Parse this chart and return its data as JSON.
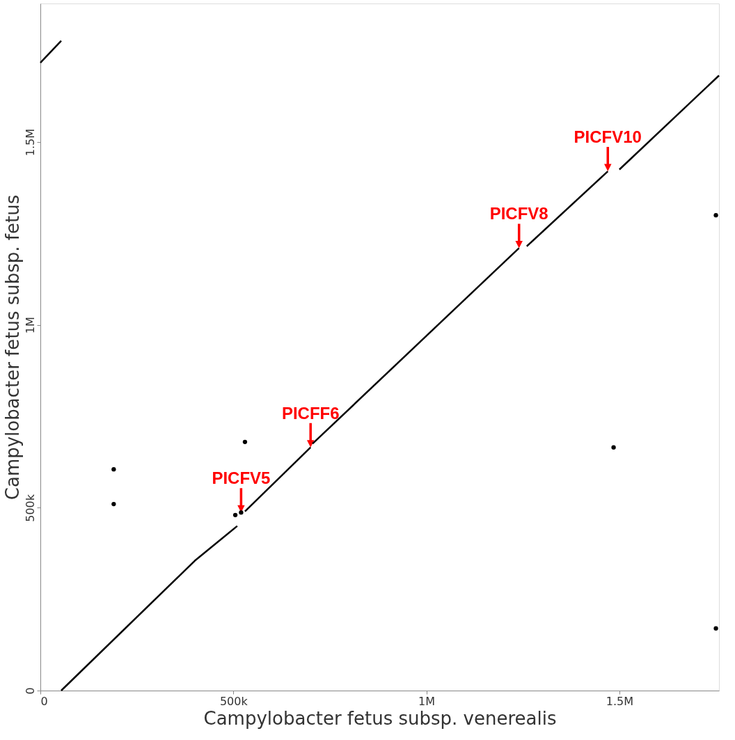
{
  "chart_data": {
    "type": "line",
    "xlabel": "Campylobacter fetus subsp. venerealis",
    "ylabel": "Campylobacter fetus subsp. fetus",
    "xlim": [
      0,
      1758000
    ],
    "ylim": [
      0,
      1879000
    ],
    "xticks": [
      0,
      {
        "value": 500000,
        "label": "500k"
      },
      {
        "value": 1000000,
        "label": "1M"
      },
      {
        "value": 1500000,
        "label": "1.5M"
      }
    ],
    "yticks": [
      0,
      {
        "value": 500000,
        "label": "500k"
      },
      {
        "value": 1000000,
        "label": "1M"
      },
      {
        "value": 1500000,
        "label": "1.5M"
      }
    ],
    "grid": false,
    "series": [
      {
        "color": "#000000",
        "x": [
          54000,
          400000,
          510000
        ],
        "values": [
          0,
          355000,
          450000
        ]
      },
      {
        "color": "#000000",
        "x": [
          530000,
          700000
        ],
        "values": [
          490000,
          665000
        ]
      },
      {
        "color": "#000000",
        "x": [
          705000,
          1240000
        ],
        "values": [
          675000,
          1210000
        ]
      },
      {
        "color": "#000000",
        "x": [
          1260000,
          1470000
        ],
        "values": [
          1215000,
          1420000
        ]
      },
      {
        "color": "#000000",
        "x": [
          1500000,
          1758000
        ],
        "values": [
          1425000,
          1682000
        ]
      },
      {
        "color": "#000000",
        "x": [
          0,
          54000
        ],
        "values": [
          1717000,
          1777000
        ]
      },
      {
        "type": "scatter",
        "color": "#000000",
        "x": [
          505000,
          520000,
          530000,
          190000,
          190000,
          1485000,
          1750000,
          1750000
        ],
        "values": [
          480000,
          487000,
          680000,
          605000,
          510000,
          665000,
          170000,
          1300000
        ]
      }
    ],
    "annotations": [
      {
        "text": "PICFV5",
        "x": 520000,
        "y": 487000
      },
      {
        "text": "PICFF6",
        "x": 700000,
        "y": 665000
      },
      {
        "text": "PICFV8",
        "x": 1240000,
        "y": 1210000
      },
      {
        "text": "PICFV10",
        "x": 1470000,
        "y": 1420000
      }
    ]
  }
}
